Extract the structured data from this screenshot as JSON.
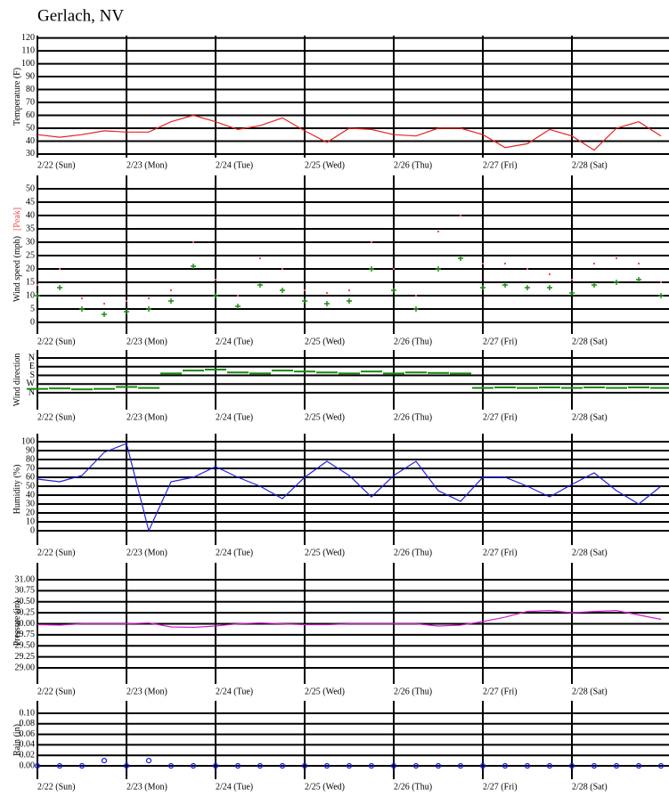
{
  "chart_data": [
    {
      "type": "line",
      "title": "Gerlach, NV",
      "x": [
        0,
        0.25,
        0.5,
        0.75,
        1,
        1.25,
        1.5,
        1.75,
        2,
        2.25,
        2.5,
        2.75,
        3,
        3.25,
        3.5,
        3.75,
        4,
        4.25,
        4.5,
        4.75,
        5,
        5.25,
        5.5,
        5.75,
        6,
        6.25,
        6.5,
        6.75,
        7
      ],
      "xlim": [
        0,
        7.03
      ],
      "xticks": [
        {
          "value": 0,
          "label": "2/22 (Sun)"
        },
        {
          "value": 1,
          "label": "2/23 (Mon)"
        },
        {
          "value": 2,
          "label": "2/24 (Tue)"
        },
        {
          "value": 3,
          "label": "2/25 (Wed)"
        },
        {
          "value": 4,
          "label": "2/26 (Thu)"
        },
        {
          "value": 5,
          "label": "2/27 (Fri)"
        },
        {
          "value": 6,
          "label": "2/28 (Sat)"
        }
      ],
      "ylim": [
        27.2,
        121.8
      ],
      "yticks": [
        30,
        40,
        50,
        60,
        70,
        80,
        90,
        100,
        110,
        120
      ],
      "series": [
        {
          "name": "Temperature (F)",
          "color": "#e8231f",
          "marker": "line",
          "values": [
            45,
            43,
            45,
            48,
            47,
            47,
            55,
            60,
            55,
            49,
            52,
            58,
            48,
            39,
            50,
            49,
            45,
            44,
            50,
            50,
            45,
            35,
            38,
            49,
            44,
            33,
            50,
            55,
            44
          ]
        }
      ]
    },
    {
      "type": "scatter",
      "x": [
        0,
        0.25,
        0.5,
        0.75,
        1,
        1.25,
        1.5,
        1.75,
        2,
        2.25,
        2.5,
        2.75,
        3,
        3.25,
        3.5,
        3.75,
        4,
        4.25,
        4.5,
        4.75,
        5,
        5.25,
        5.5,
        5.75,
        6,
        6.25,
        6.5,
        6.75,
        7
      ],
      "xlim": [
        0,
        7.03
      ],
      "xticks": [
        {
          "value": 0,
          "label": "2/22 (Sun)"
        },
        {
          "value": 1,
          "label": "2/23 (Mon)"
        },
        {
          "value": 2,
          "label": "2/24 (Tue)"
        },
        {
          "value": 3,
          "label": "2/25 (Wed)"
        },
        {
          "value": 4,
          "label": "2/26 (Thu)"
        },
        {
          "value": 5,
          "label": "2/27 (Fri)"
        },
        {
          "value": 6,
          "label": "2/28 (Sat)"
        }
      ],
      "ylim": [
        -4.33,
        55
      ],
      "yticks": [
        0,
        5,
        10,
        15,
        20,
        25,
        30,
        35,
        40,
        45,
        50
      ],
      "series": [
        {
          "name": "Wind speed (mph)",
          "color": "#1a8a12",
          "marker": "plus",
          "values": [
            10,
            13,
            5,
            3,
            4,
            5,
            8,
            21,
            10,
            6,
            14,
            12,
            8,
            7,
            8,
            20,
            12,
            5,
            20,
            24,
            13,
            14,
            13,
            13,
            11,
            14,
            15,
            16,
            10
          ]
        },
        {
          "name": "[Peak]",
          "color": "#f05050",
          "marker": "dot",
          "values": [
            14,
            20,
            9,
            7,
            8,
            9,
            12,
            30,
            16,
            10,
            24,
            20,
            12,
            11,
            12,
            30,
            20,
            10,
            34,
            40,
            22,
            22,
            20,
            18,
            16,
            22,
            24,
            22,
            15
          ]
        }
      ]
    },
    {
      "type": "scatter",
      "x": [
        0,
        0.25,
        0.5,
        0.75,
        1,
        1.25,
        1.5,
        1.75,
        2,
        2.25,
        2.5,
        2.75,
        3,
        3.25,
        3.5,
        3.75,
        4,
        4.25,
        4.5,
        4.75,
        5,
        5.25,
        5.5,
        5.75,
        6,
        6.25,
        6.5,
        6.75,
        7
      ],
      "xlim": [
        0,
        7.03
      ],
      "xticks": [
        {
          "value": 0,
          "label": "2/22 (Sun)"
        },
        {
          "value": 1,
          "label": "2/23 (Mon)"
        },
        {
          "value": 2,
          "label": "2/24 (Tue)"
        },
        {
          "value": 3,
          "label": "2/25 (Wed)"
        },
        {
          "value": 4,
          "label": "2/26 (Thu)"
        },
        {
          "value": 5,
          "label": "2/27 (Fri)"
        },
        {
          "value": 6,
          "label": "2/28 (Sat)"
        }
      ],
      "ylim": [
        -175,
        443
      ],
      "yticks": [
        {
          "value": 0,
          "label": "N"
        },
        {
          "value": 90,
          "label": "W"
        },
        {
          "value": 180,
          "label": "S"
        },
        {
          "value": 270,
          "label": "E"
        },
        {
          "value": 360,
          "label": "N"
        }
      ],
      "series": [
        {
          "name": "Wind direction",
          "color": "#1a8a12",
          "marker": "dash",
          "values": [
            40,
            45,
            35,
            40,
            60,
            50,
            200,
            230,
            240,
            210,
            200,
            230,
            220,
            210,
            200,
            220,
            200,
            210,
            205,
            200,
            50,
            55,
            50,
            55,
            50,
            55,
            50,
            55,
            50
          ]
        }
      ]
    },
    {
      "type": "line",
      "x": [
        0,
        0.25,
        0.5,
        0.75,
        1,
        1.25,
        1.5,
        1.75,
        2,
        2.25,
        2.5,
        2.75,
        3,
        3.25,
        3.5,
        3.75,
        4,
        4.25,
        4.5,
        4.75,
        5,
        5.25,
        5.5,
        5.75,
        6,
        6.25,
        6.5,
        6.75,
        7
      ],
      "xlim": [
        0,
        7.03
      ],
      "xticks": [
        {
          "value": 0,
          "label": "2/22 (Sun)"
        },
        {
          "value": 1,
          "label": "2/23 (Mon)"
        },
        {
          "value": 2,
          "label": "2/24 (Tue)"
        },
        {
          "value": 3,
          "label": "2/25 (Wed)"
        },
        {
          "value": 4,
          "label": "2/26 (Thu)"
        },
        {
          "value": 5,
          "label": "2/27 (Fri)"
        },
        {
          "value": 6,
          "label": "2/28 (Sat)"
        }
      ],
      "ylim": [
        -16,
        109
      ],
      "yticks": [
        0,
        10,
        20,
        30,
        40,
        50,
        60,
        70,
        80,
        90,
        100
      ],
      "series": [
        {
          "name": "Humidity (%)",
          "color": "#2020e0",
          "marker": "line",
          "values": [
            58,
            55,
            62,
            88,
            98,
            0,
            55,
            60,
            72,
            60,
            50,
            36,
            60,
            78,
            62,
            38,
            62,
            78,
            45,
            33,
            60,
            60,
            50,
            38,
            52,
            65,
            45,
            30,
            50
          ]
        }
      ]
    },
    {
      "type": "line",
      "x": [
        0,
        0.25,
        0.5,
        0.75,
        1,
        1.25,
        1.5,
        1.75,
        2,
        2.25,
        2.5,
        2.75,
        3,
        3.25,
        3.5,
        3.75,
        4,
        4.25,
        4.5,
        4.75,
        5,
        5.25,
        5.5,
        5.75,
        6,
        6.25,
        6.5,
        6.75,
        7
      ],
      "xlim": [
        0,
        7.03
      ],
      "xticks": [
        {
          "value": 0,
          "label": "2/22 (Sun)"
        },
        {
          "value": 1,
          "label": "2/23 (Mon)"
        },
        {
          "value": 2,
          "label": "2/24 (Tue)"
        },
        {
          "value": 3,
          "label": "2/25 (Wed)"
        },
        {
          "value": 4,
          "label": "2/26 (Thu)"
        },
        {
          "value": 5,
          "label": "2/27 (Fri)"
        },
        {
          "value": 6,
          "label": "2/28 (Sat)"
        }
      ],
      "ylim": [
        28.636,
        31.384
      ],
      "yticks": [
        {
          "value": 29,
          "label": "29.00"
        },
        {
          "value": 29.25,
          "label": "29.25"
        },
        {
          "value": 29.5,
          "label": "29.50"
        },
        {
          "value": 29.75,
          "label": "29.75"
        },
        {
          "value": 30,
          "label": "30.00"
        },
        {
          "value": 30.25,
          "label": "30.25"
        },
        {
          "value": 30.5,
          "label": "30.50"
        },
        {
          "value": 30.75,
          "label": "30.75"
        },
        {
          "value": 31,
          "label": "31.00"
        }
      ],
      "series": [
        {
          "name": "Pressure (in)",
          "color": "#d020d0",
          "marker": "line",
          "values": [
            29.98,
            29.97,
            30.0,
            30.0,
            30.0,
            30.02,
            29.93,
            29.92,
            29.95,
            30.0,
            30.02,
            30.0,
            29.98,
            29.98,
            30.0,
            30.0,
            30.0,
            30.0,
            29.95,
            29.97,
            30.05,
            30.15,
            30.28,
            30.3,
            30.25,
            30.28,
            30.3,
            30.2,
            30.1
          ]
        }
      ]
    },
    {
      "type": "scatter",
      "x": [
        0,
        0.25,
        0.5,
        0.75,
        1,
        1.25,
        1.5,
        1.75,
        2,
        2.25,
        2.5,
        2.75,
        3,
        3.25,
        3.5,
        3.75,
        4,
        4.25,
        4.5,
        4.75,
        5,
        5.25,
        5.5,
        5.75,
        6,
        6.25,
        6.5,
        6.75,
        7
      ],
      "xlim": [
        0,
        7.03
      ],
      "xticks": [
        {
          "value": 0,
          "label": "2/22 (Sun)"
        },
        {
          "value": 1,
          "label": "2/23 (Mon)"
        },
        {
          "value": 2,
          "label": "2/24 (Tue)"
        },
        {
          "value": 3,
          "label": "2/25 (Wed)"
        },
        {
          "value": 4,
          "label": "2/26 (Thu)"
        },
        {
          "value": 5,
          "label": "2/27 (Fri)"
        },
        {
          "value": 6,
          "label": "2/28 (Sat)"
        }
      ],
      "ylim": [
        -0.0254,
        0.1237
      ],
      "yticks": [
        {
          "value": 0,
          "label": "0.00"
        },
        {
          "value": 0.02,
          "label": "0.02"
        },
        {
          "value": 0.04,
          "label": "0.04"
        },
        {
          "value": 0.06,
          "label": "0.06"
        },
        {
          "value": 0.08,
          "label": "0.08"
        },
        {
          "value": 0.1,
          "label": "0.10"
        }
      ],
      "series": [
        {
          "name": "Rain (in)",
          "color": "#1515e8",
          "marker": "circle",
          "values": [
            0,
            0,
            0,
            0.01,
            0,
            0.01,
            0,
            0,
            0,
            0,
            0,
            0,
            0,
            0,
            0,
            0,
            0,
            0,
            0,
            0,
            0,
            0,
            0,
            0,
            0,
            0,
            0,
            0,
            0
          ]
        }
      ]
    }
  ]
}
